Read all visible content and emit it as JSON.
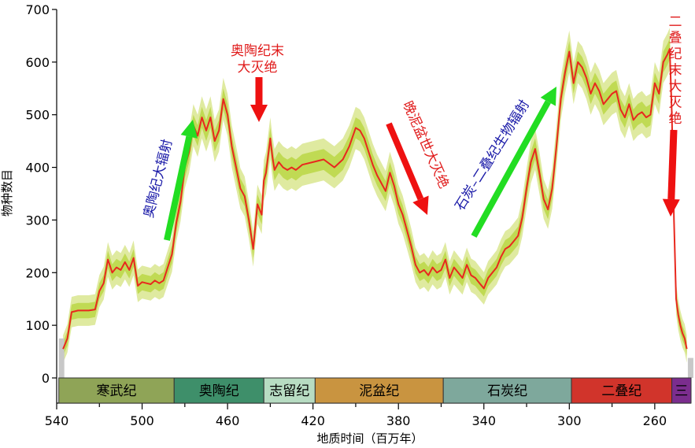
{
  "chart_data": {
    "type": "line",
    "xlabel": "地质时间（百万年）",
    "ylabel": "物种数目",
    "xlim": [
      540,
      243
    ],
    "ylim": [
      0,
      700
    ],
    "x_ticks": [
      540,
      500,
      460,
      420,
      380,
      340,
      300,
      260
    ],
    "y_ticks": [
      0,
      100,
      200,
      300,
      400,
      500,
      600,
      700
    ],
    "series": [
      {
        "values_x": [
          537,
          535,
          533,
          530,
          525,
          522,
          520,
          518,
          516,
          514,
          512,
          510,
          508,
          506,
          504,
          502,
          500,
          498,
          496,
          494,
          492,
          490,
          488,
          486,
          484,
          482,
          480,
          478,
          476,
          474,
          472,
          470,
          468,
          466,
          464,
          462,
          460,
          458,
          456,
          454,
          452,
          450,
          448,
          446,
          444,
          443,
          442,
          440,
          439,
          438,
          436,
          434,
          432,
          430,
          428,
          425,
          420,
          415,
          410,
          406,
          403,
          400,
          398,
          396,
          394,
          392,
          390,
          388,
          386,
          384,
          382,
          380,
          378,
          376,
          374,
          372,
          370,
          368,
          366,
          364,
          362,
          360,
          358,
          356,
          354,
          352,
          350,
          348,
          346,
          344,
          342,
          340,
          338,
          336,
          334,
          332,
          330,
          328,
          326,
          324,
          322,
          320,
          318,
          316,
          314,
          312,
          310,
          308,
          306,
          304,
          302,
          300,
          298,
          296,
          294,
          292,
          290,
          288,
          286,
          284,
          282,
          280,
          278,
          276,
          274,
          272,
          270,
          268,
          266,
          264,
          262,
          260,
          258,
          256,
          254,
          253,
          252,
          251,
          250,
          249,
          248,
          247,
          246,
          245
        ],
        "values": [
          55,
          75,
          125,
          128,
          128,
          130,
          165,
          180,
          225,
          200,
          210,
          205,
          220,
          205,
          228,
          175,
          182,
          180,
          178,
          185,
          180,
          185,
          210,
          235,
          295,
          335,
          400,
          430,
          480,
          460,
          495,
          470,
          495,
          450,
          470,
          530,
          500,
          440,
          400,
          360,
          345,
          300,
          245,
          330,
          310,
          375,
          390,
          455,
          420,
          395,
          410,
          400,
          395,
          400,
          395,
          405,
          410,
          415,
          400,
          415,
          440,
          475,
          470,
          455,
          430,
          405,
          385,
          370,
          355,
          390,
          365,
          330,
          310,
          280,
          250,
          215,
          200,
          205,
          195,
          210,
          200,
          205,
          225,
          190,
          210,
          200,
          190,
          215,
          195,
          190,
          180,
          170,
          190,
          200,
          210,
          230,
          245,
          250,
          260,
          270,
          305,
          360,
          410,
          435,
          390,
          340,
          320,
          360,
          440,
          530,
          580,
          620,
          560,
          600,
          590,
          570,
          540,
          560,
          545,
          520,
          530,
          540,
          545,
          510,
          495,
          520,
          490,
          500,
          505,
          495,
          500,
          560,
          540,
          600,
          615,
          625,
          500,
          300,
          150,
          120,
          100,
          85,
          75,
          55
        ]
      }
    ],
    "periods": [
      {
        "name": "寒武纪",
        "start": 539,
        "end": 485,
        "color": "#8fa457"
      },
      {
        "name": "奥陶纪",
        "start": 485,
        "end": 443,
        "color": "#3e8f6a"
      },
      {
        "name": "志留纪",
        "start": 443,
        "end": 419,
        "color": "#b7dcc2"
      },
      {
        "name": "泥盆纪",
        "start": 419,
        "end": 359,
        "color": "#c99440"
      },
      {
        "name": "石炭纪",
        "start": 359,
        "end": 299,
        "color": "#7ea89c"
      },
      {
        "name": "二叠纪",
        "start": 299,
        "end": 252,
        "color": "#d1342b"
      },
      {
        "name": "三",
        "start": 252,
        "end": 243,
        "color": "#7b2d8e"
      }
    ],
    "annotations": [
      {
        "id": "ordovician-radiation",
        "text": "奥陶纪大辐射",
        "color": "#1a1aa8",
        "arrow_color": "#22dd22"
      },
      {
        "id": "ordovician-extinction",
        "text_lines": [
          "奥陶纪末",
          "大灭绝"
        ],
        "color": "#e01b1b",
        "arrow_color": "#ee1111"
      },
      {
        "id": "late-devonian-extinction",
        "text": "晚泥盆世大灭绝",
        "color": "#e01b1b",
        "arrow_color": "#ee1111"
      },
      {
        "id": "carboniferous-permian-radiation",
        "text": "石炭–二叠纪生物辐射",
        "color": "#1a1aa8",
        "arrow_color": "#22dd22"
      },
      {
        "id": "permian-extinction",
        "text": "二叠纪末大灭绝",
        "color": "#e01b1b",
        "arrow_color": "#ee1111"
      }
    ],
    "colors": {
      "line": "#e8281e",
      "band_outer": "#dfeaa0",
      "band_inner": "#bcd84a"
    }
  }
}
